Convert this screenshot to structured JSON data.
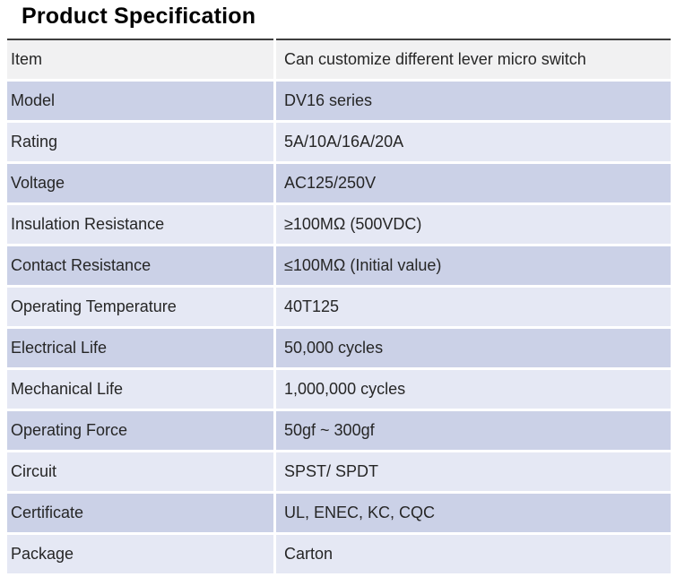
{
  "title": "Product Specification",
  "colors": {
    "page_background": "#ffffff",
    "first_row_bg": "#f1f1f2",
    "alt_row_dark_bg": "#cbd1e7",
    "alt_row_light_bg": "#e5e8f4",
    "table_top_border": "#3f3f3f",
    "text": "#262626",
    "title_text": "#000000"
  },
  "table": {
    "rows": [
      {
        "label": "Item",
        "value": "Can customize different lever micro switch"
      },
      {
        "label": "Model",
        "value": "DV16 series"
      },
      {
        "label": "Rating",
        "value": "5A/10A/16A/20A"
      },
      {
        "label": "Voltage",
        "value": "AC125/250V"
      },
      {
        "label": "Insulation Resistance",
        "value": "≥100MΩ (500VDC)"
      },
      {
        "label": "Contact Resistance",
        "value": "≤100MΩ (Initial value)"
      },
      {
        "label": "Operating Temperature",
        "value": "40T125"
      },
      {
        "label": "Electrical Life",
        "value": "50,000 cycles"
      },
      {
        "label": "Mechanical Life",
        "value": "1,000,000 cycles"
      },
      {
        "label": "Operating Force",
        "value": "50gf ~ 300gf"
      },
      {
        "label": "Circuit",
        "value": "SPST/ SPDT"
      },
      {
        "label": "Certificate",
        "value": "UL, ENEC, KC, CQC"
      },
      {
        "label": "Package",
        "value": "Carton"
      }
    ]
  }
}
